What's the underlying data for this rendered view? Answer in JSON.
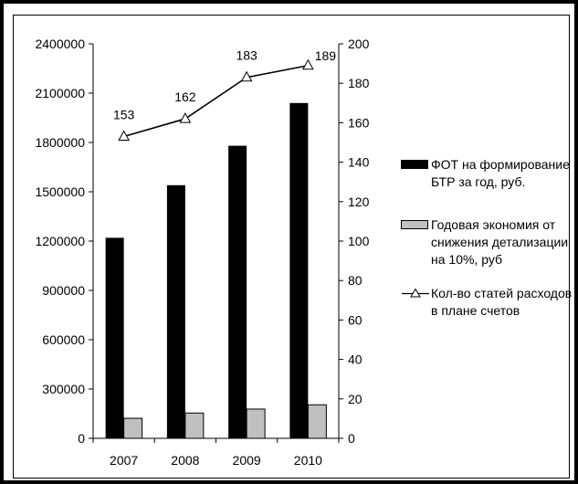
{
  "chart_data": {
    "type": "bar",
    "categories": [
      "2007",
      "2008",
      "2009",
      "2010"
    ],
    "series": [
      {
        "name": "ФОТ на формирование БТР за год, руб.",
        "type": "bar",
        "axis": "left",
        "color": "#000000",
        "values": [
          1220000,
          1540000,
          1780000,
          2040000
        ]
      },
      {
        "name": "Годовая экономия от снижения детализации на 10%, руб",
        "type": "bar",
        "axis": "left",
        "color": "#c0c0c0",
        "values": [
          122000,
          154000,
          178000,
          204000
        ]
      },
      {
        "name": "Кол-во статей расходов в плане счетов",
        "type": "line",
        "axis": "right",
        "color": "#000000",
        "marker": "triangle",
        "values": [
          153,
          162,
          183,
          189
        ],
        "labels": [
          "153",
          "162",
          "183",
          "189"
        ]
      }
    ],
    "y_left": {
      "min": 0,
      "max": 2400000,
      "ticks": [
        "0",
        "300000",
        "600000",
        "900000",
        "1200000",
        "1500000",
        "1800000",
        "2100000",
        "2400000"
      ]
    },
    "y_right": {
      "min": 0,
      "max": 200,
      "ticks": [
        "0",
        "20",
        "40",
        "60",
        "80",
        "100",
        "120",
        "140",
        "160",
        "180",
        "200"
      ]
    },
    "grid": false,
    "legend_position": "right"
  },
  "legend": {
    "item1": {
      "line1": "ФОТ на формирование",
      "line2": "БТР за год, руб."
    },
    "item2": {
      "line1": "Годовая экономия от",
      "line2": "снижения детализации",
      "line3": "на 10%, руб"
    },
    "item3": {
      "line1": "Кол-во статей расходов",
      "line2": "в плане счетов"
    }
  }
}
